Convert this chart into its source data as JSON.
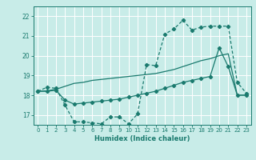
{
  "x": [
    0,
    1,
    2,
    3,
    4,
    5,
    6,
    7,
    8,
    9,
    10,
    11,
    12,
    13,
    14,
    15,
    16,
    17,
    18,
    19,
    20,
    21,
    22,
    23
  ],
  "line1": [
    18.2,
    18.4,
    18.35,
    17.5,
    16.65,
    16.65,
    16.6,
    16.55,
    16.9,
    16.9,
    16.55,
    17.05,
    19.55,
    19.5,
    21.1,
    21.35,
    21.8,
    21.3,
    21.45,
    21.5,
    21.5,
    21.5,
    18.65,
    18.1
  ],
  "line2": [
    18.2,
    18.22,
    18.3,
    18.45,
    18.6,
    18.65,
    18.75,
    18.8,
    18.85,
    18.9,
    18.95,
    19.0,
    19.05,
    19.1,
    19.2,
    19.3,
    19.45,
    19.6,
    19.75,
    19.85,
    20.0,
    20.1,
    18.0,
    18.0
  ],
  "line3": [
    18.2,
    18.2,
    18.25,
    17.75,
    17.55,
    17.6,
    17.65,
    17.7,
    17.75,
    17.8,
    17.9,
    18.0,
    18.1,
    18.2,
    18.35,
    18.5,
    18.65,
    18.75,
    18.85,
    18.95,
    20.4,
    19.45,
    18.0,
    18.0
  ],
  "color": "#1a7a6e",
  "bg_color": "#c8ece8",
  "grid_color": "#ffffff",
  "xlabel": "Humidex (Indice chaleur)",
  "ylim": [
    16.5,
    22.5
  ],
  "xlim": [
    -0.5,
    23.5
  ],
  "yticks": [
    17,
    18,
    19,
    20,
    21,
    22
  ],
  "xticks": [
    0,
    1,
    2,
    3,
    4,
    5,
    6,
    7,
    8,
    9,
    10,
    11,
    12,
    13,
    14,
    15,
    16,
    17,
    18,
    19,
    20,
    21,
    22,
    23
  ]
}
